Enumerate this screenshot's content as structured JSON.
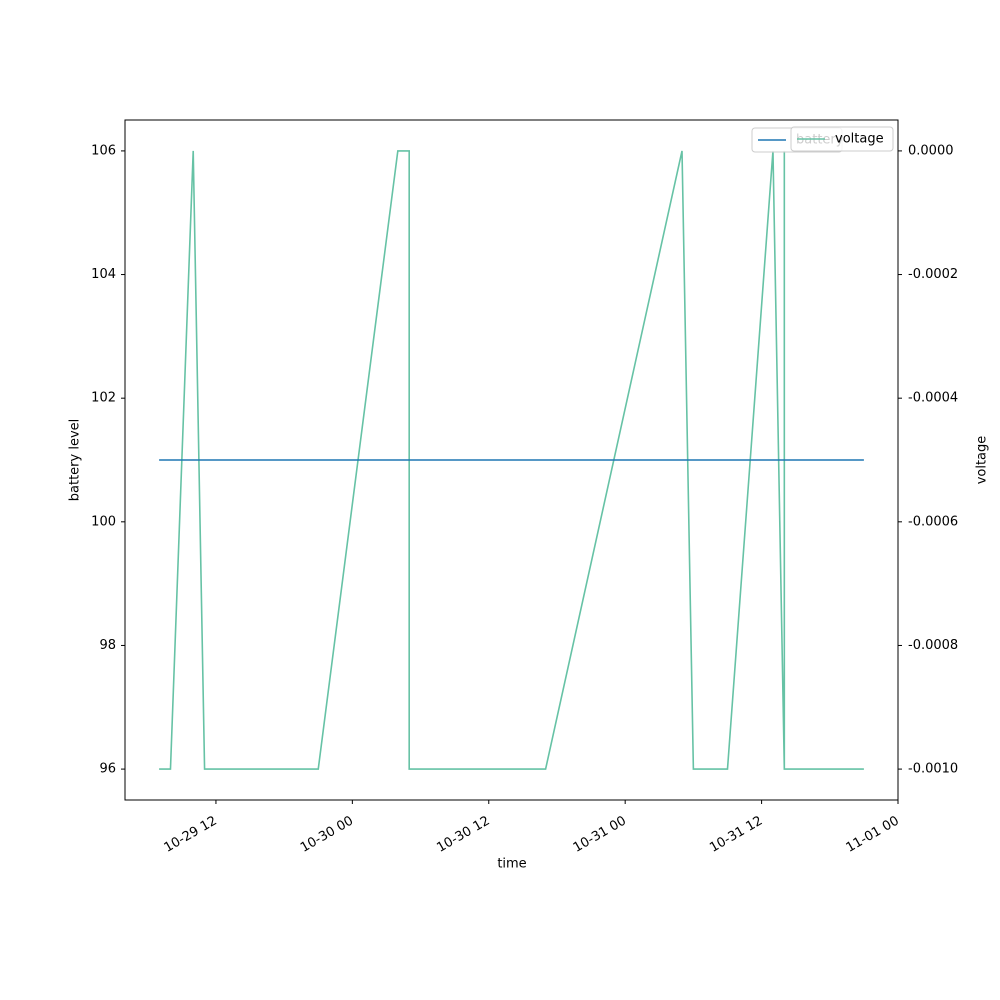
{
  "chart_data": {
    "type": "line",
    "x_label": "time",
    "y_label": "battery level",
    "y2_label": "voltage",
    "x": [
      "10-29 07",
      "10-29 08",
      "10-29 10",
      "10-29 11",
      "10-29 21",
      "10-30 04",
      "10-30 05",
      "10-30 05",
      "10-30 17",
      "10-31 05",
      "10-31 06",
      "10-31 09",
      "10-31 13",
      "10-31 13",
      "10-31 14",
      "10-31 14",
      "10-31 14",
      "10-31 21"
    ],
    "series": [
      {
        "name": "battery",
        "color": "#1f77b4",
        "axis": "y",
        "values": [
          101,
          101,
          101,
          101,
          101,
          101,
          101,
          101,
          101,
          101,
          101,
          101,
          101,
          101,
          101,
          101,
          101,
          101
        ]
      },
      {
        "name": "voltage",
        "color": "#66c2a5",
        "axis": "y2",
        "values": [
          -0.001,
          -0.001,
          0,
          -0.001,
          -0.001,
          0,
          0,
          -0.001,
          -0.001,
          0,
          -0.001,
          -0.001,
          0,
          0,
          -0.001,
          0,
          -0.001,
          -0.001
        ]
      }
    ],
    "xlim": [
      "10-29 04",
      "11-01 00"
    ],
    "xticks": [
      "10-29 12",
      "10-30 00",
      "10-30 12",
      "10-31 00",
      "10-31 12",
      "11-01 00"
    ],
    "ylim": [
      95.5,
      106.5
    ],
    "yticks": [
      96,
      98,
      100,
      102,
      104,
      106
    ],
    "y2lim": [
      -0.00105,
      5e-05
    ],
    "y2ticks": [
      {
        "value": -0.001,
        "label": "-0.0010"
      },
      {
        "value": -0.0008,
        "label": "-0.0008"
      },
      {
        "value": -0.0006,
        "label": "-0.0006"
      },
      {
        "value": -0.0004,
        "label": "-0.0004"
      },
      {
        "value": -0.0002,
        "label": "-0.0002"
      },
      {
        "value": 0,
        "label": "0.0000"
      }
    ],
    "legend": "upper right"
  }
}
